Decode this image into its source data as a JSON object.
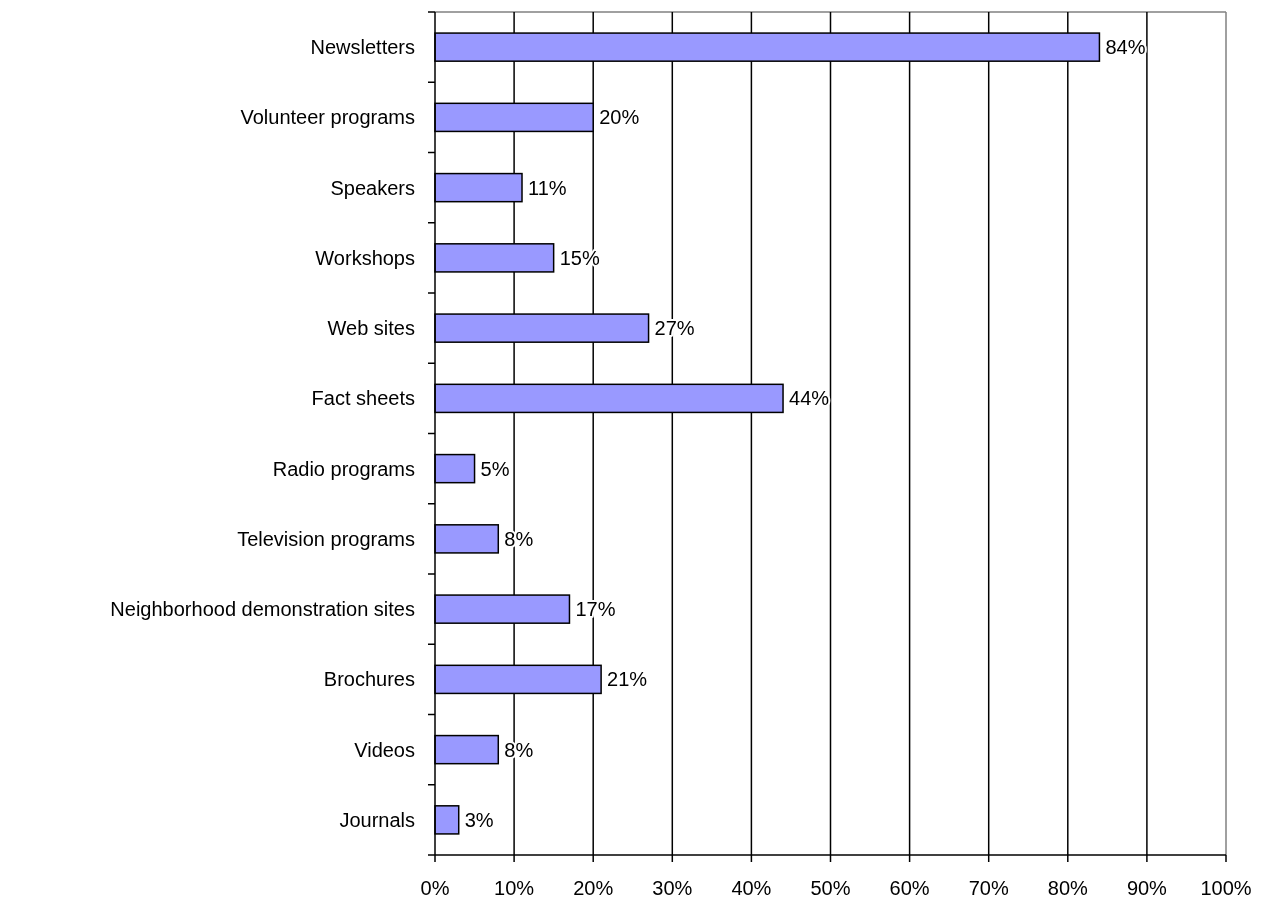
{
  "chart_data": {
    "type": "bar",
    "orientation": "horizontal",
    "categories": [
      "Newsletters",
      "Volunteer programs",
      "Speakers",
      "Workshops",
      "Web sites",
      "Fact sheets",
      "Radio programs",
      "Television programs",
      "Neighborhood demonstration sites",
      "Brochures",
      "Videos",
      "Journals"
    ],
    "values": [
      84,
      20,
      11,
      15,
      27,
      44,
      5,
      8,
      17,
      21,
      8,
      3
    ],
    "color": "#9999ff",
    "value_labels": [
      "84%",
      "20%",
      "11%",
      "15%",
      "27%",
      "44%",
      "5%",
      "8%",
      "17%",
      "21%",
      "8%",
      "3%"
    ],
    "xlim": [
      0,
      100
    ],
    "xticks": [
      {
        "value": 0,
        "label": "0%"
      },
      {
        "value": 10,
        "label": "10%"
      },
      {
        "value": 20,
        "label": "20%"
      },
      {
        "value": 30,
        "label": "30%"
      },
      {
        "value": 40,
        "label": "40%"
      },
      {
        "value": 50,
        "label": "50%"
      },
      {
        "value": 60,
        "label": "60%"
      },
      {
        "value": 70,
        "label": "70%"
      },
      {
        "value": 80,
        "label": "80%"
      },
      {
        "value": 90,
        "label": "90%"
      },
      {
        "value": 100,
        "label": "100%"
      }
    ],
    "grid": "x"
  }
}
